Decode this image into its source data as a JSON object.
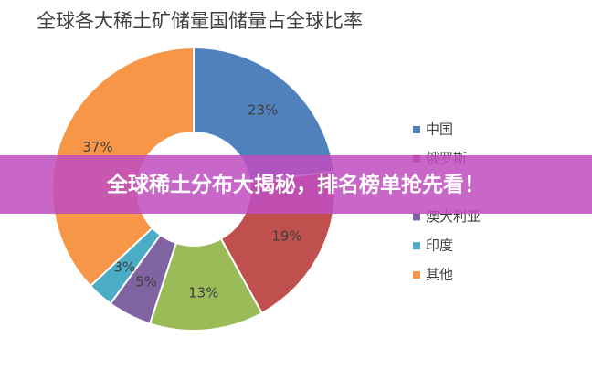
{
  "chart_data": {
    "type": "donut",
    "title": "全球各大稀土矿储量国储量占全球比率",
    "categories": [
      "中国",
      "俄罗斯",
      null,
      "澳大利亚",
      "印度",
      "其他"
    ],
    "values": [
      23,
      19,
      13,
      5,
      3,
      37
    ],
    "value_labels": [
      "23%",
      "19%",
      "13%",
      "5%",
      "3%",
      "37%"
    ],
    "colors": [
      "#4f81bd",
      "#c0504d",
      "#9bbb59",
      "#8064a2",
      "#4bacc6",
      "#f79646"
    ],
    "legend": "right"
  },
  "banner": {
    "text": "全球稀土分布大揭秘，排名榜单抢先看！"
  }
}
